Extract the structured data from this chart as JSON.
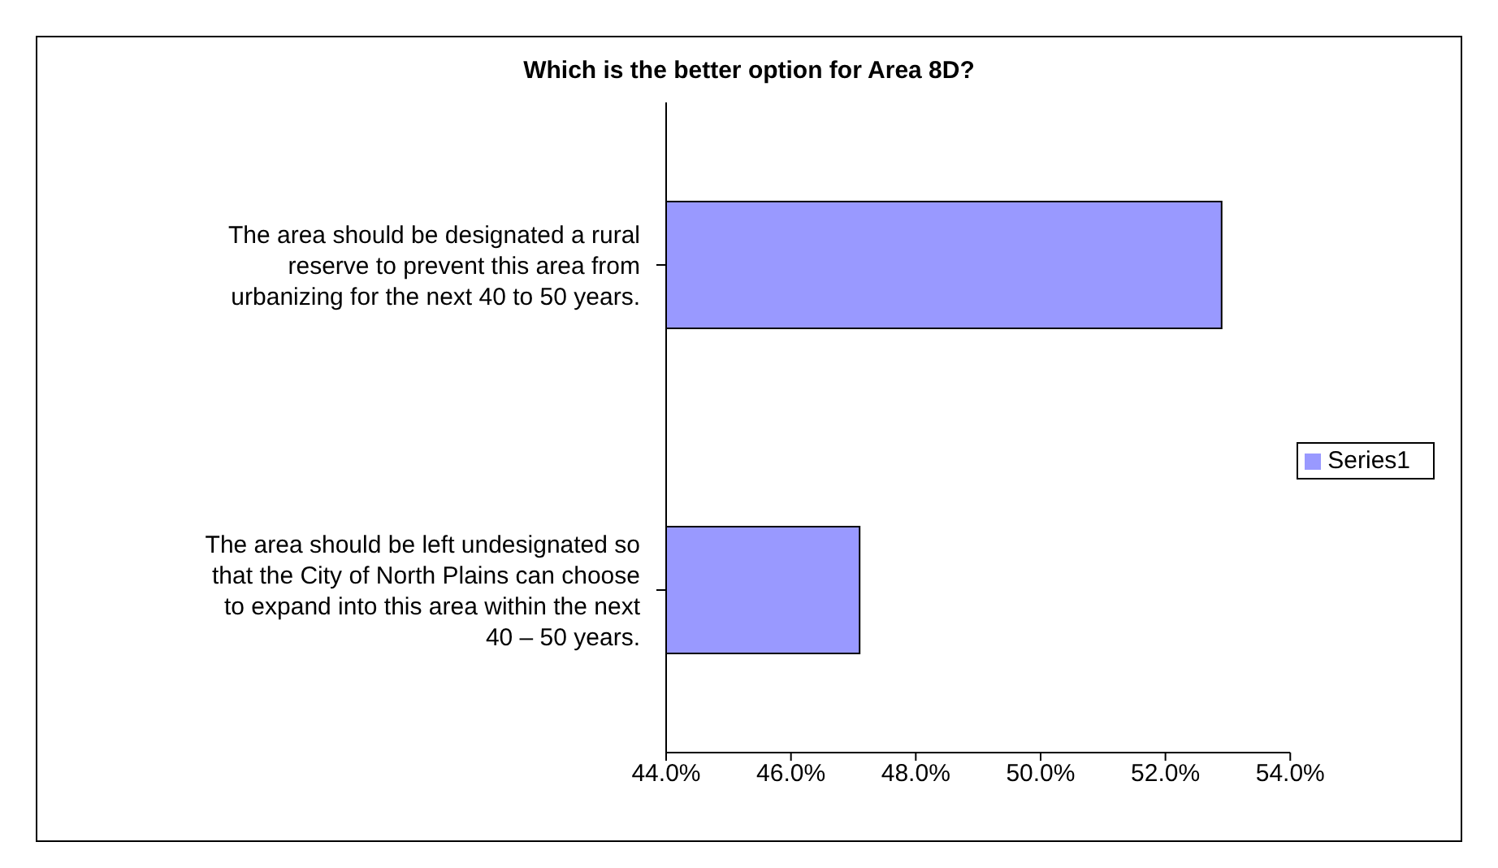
{
  "chart_data": {
    "type": "bar",
    "orientation": "horizontal",
    "title": "Which is the better option for Area 8D?",
    "categories": [
      "The area should be designated a rural reserve to prevent this area from urbanizing for the next 40 to 50 years.",
      "The area should be left undesignated so that the City of North Plains can choose to expand into this area within the next 40 – 50 years."
    ],
    "series": [
      {
        "name": "Series1",
        "color": "#9999ff",
        "values": [
          52.9,
          47.1
        ]
      }
    ],
    "xlim": [
      44,
      54
    ],
    "xticks": [
      {
        "value": 44,
        "label": "44.0%"
      },
      {
        "value": 46,
        "label": "46.0%"
      },
      {
        "value": 48,
        "label": "48.0%"
      },
      {
        "value": 50,
        "label": "50.0%"
      },
      {
        "value": 52,
        "label": "52.0%"
      },
      {
        "value": 54,
        "label": "54.0%"
      }
    ],
    "legend": "right"
  }
}
